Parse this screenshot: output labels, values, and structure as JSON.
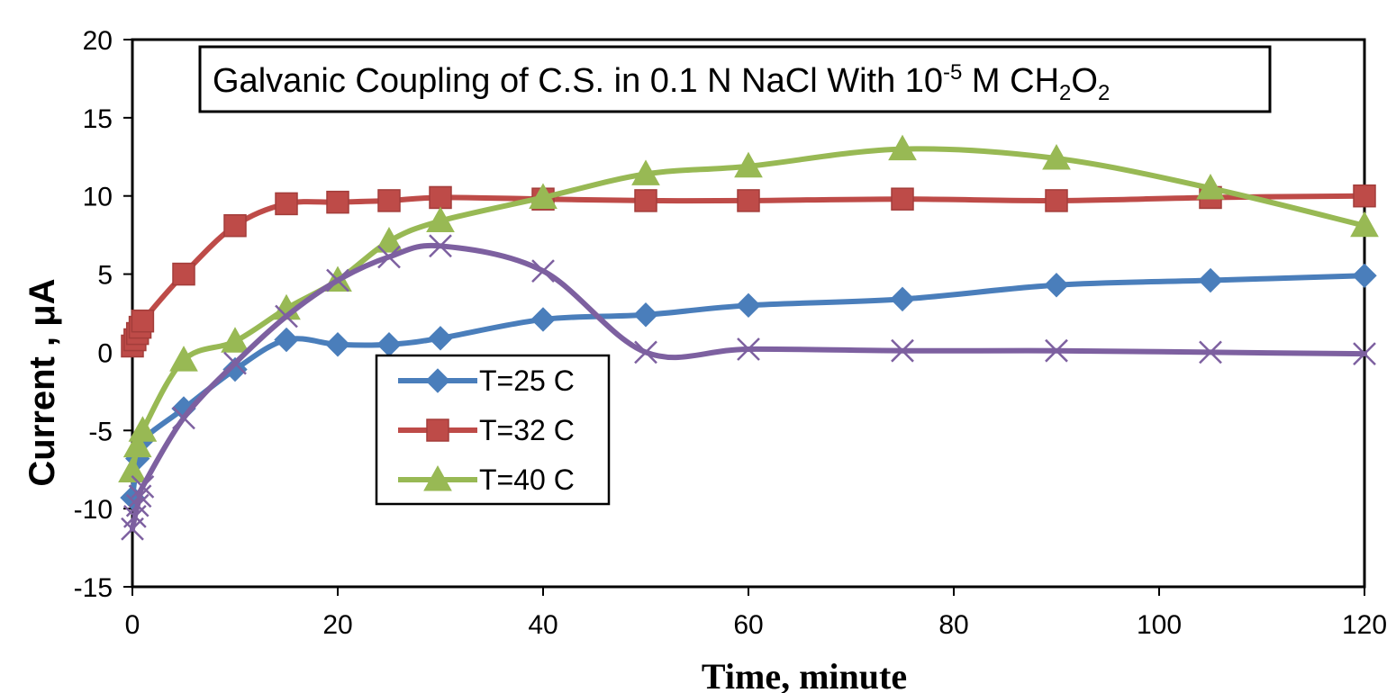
{
  "chart_data": {
    "type": "line",
    "title": {
      "main": "Galvanic Coupling of C.S. in 0.1 N NaCl With 10",
      "exponent": "-5",
      "mid": " M CH",
      "sub1": "2",
      "o": "O",
      "sub2": "2"
    },
    "xlabel": "Time, minute",
    "ylabel": "Current , μA",
    "xlim": [
      0,
      120
    ],
    "ylim": [
      -15,
      20
    ],
    "x_ticks": [
      "0",
      "20",
      "40",
      "60",
      "80",
      "100",
      "120"
    ],
    "y_ticks": [
      "20",
      "15",
      "10",
      "5",
      "0",
      "-5",
      "-10",
      "-15"
    ],
    "grid": false,
    "legend_position": "center-left",
    "series": [
      {
        "name": "T=25 C",
        "color": "#4a7ebb",
        "marker": "diamond",
        "x": [
          0,
          0.5,
          1,
          5,
          10,
          15,
          20,
          25,
          30,
          40,
          50,
          60,
          75,
          90,
          105,
          120
        ],
        "y": [
          -9.3,
          -6.8,
          -5.6,
          -3.6,
          -1.1,
          0.8,
          0.5,
          0.5,
          0.9,
          2.1,
          2.4,
          3.0,
          3.4,
          4.3,
          4.6,
          4.9
        ]
      },
      {
        "name": "T=32 C",
        "color": "#be4b48",
        "marker": "square",
        "x": [
          0,
          0.25,
          0.5,
          0.75,
          1,
          5,
          10,
          15,
          20,
          25,
          30,
          40,
          50,
          60,
          75,
          90,
          105,
          120
        ],
        "y": [
          0.4,
          0.8,
          1.2,
          1.6,
          2.0,
          5.0,
          8.1,
          9.5,
          9.6,
          9.7,
          9.9,
          9.8,
          9.7,
          9.7,
          9.8,
          9.7,
          9.9,
          10.0
        ]
      },
      {
        "name": "T=40 C",
        "color": "#98b954",
        "marker": "triangle",
        "x": [
          0,
          0.5,
          1,
          5,
          10,
          15,
          20,
          25,
          30,
          40,
          50,
          60,
          75,
          90,
          105,
          120
        ],
        "y": [
          -7.6,
          -6.0,
          -5.0,
          -0.5,
          0.7,
          2.8,
          4.6,
          7.1,
          8.4,
          9.9,
          11.4,
          11.9,
          13.0,
          12.4,
          10.5,
          8.1
        ]
      },
      {
        "color": "#7d60a0",
        "marker": "x",
        "x": [
          0,
          0.25,
          0.5,
          0.75,
          1,
          5,
          10,
          15,
          20,
          25,
          30,
          40,
          50,
          60,
          75,
          90,
          105,
          120
        ],
        "y": [
          -11.3,
          -10.5,
          -9.8,
          -9.2,
          -8.6,
          -4.2,
          -0.7,
          2.3,
          4.6,
          6.1,
          6.8,
          5.2,
          0.0,
          0.2,
          0.1,
          0.1,
          0.0,
          -0.1
        ]
      }
    ]
  }
}
